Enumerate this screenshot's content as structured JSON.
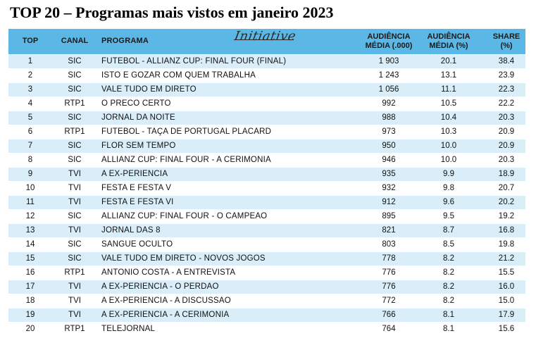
{
  "title": "TOP 20 – Programas mais vistos em janeiro 2023",
  "logo_text": "Initiative",
  "header": {
    "top": "TOP",
    "canal": "CANAL",
    "programa": "PROGRAMA",
    "audiencia_line1": "AUDIÊNCIA",
    "audiencia_line2": "MÉDIA (.000)",
    "audiencia_pct_line1": "AUDIÊNCIA",
    "audiencia_pct_line2": "MÉDIA (%)",
    "share_line1": "SHARE",
    "share_line2": "(%)"
  },
  "rows": [
    {
      "top": "1",
      "canal": "SIC",
      "programa": "FUTEBOL - ALLIANZ CUP: FINAL FOUR (FINAL)",
      "audiencia": "1 903",
      "audiencia_pct": "20.1",
      "share": "38.4"
    },
    {
      "top": "2",
      "canal": "SIC",
      "programa": "ISTO E GOZAR COM QUEM TRABALHA",
      "audiencia": "1 243",
      "audiencia_pct": "13.1",
      "share": "23.9"
    },
    {
      "top": "3",
      "canal": "SIC",
      "programa": "VALE TUDO EM DIRETO",
      "audiencia": "1 056",
      "audiencia_pct": "11.1",
      "share": "22.3"
    },
    {
      "top": "4",
      "canal": "RTP1",
      "programa": "O PRECO CERTO",
      "audiencia": "992",
      "audiencia_pct": "10.5",
      "share": "22.2"
    },
    {
      "top": "5",
      "canal": "SIC",
      "programa": "JORNAL DA NOITE",
      "audiencia": "988",
      "audiencia_pct": "10.4",
      "share": "20.3"
    },
    {
      "top": "6",
      "canal": "RTP1",
      "programa": "FUTEBOL - TAÇA DE PORTUGAL PLACARD",
      "audiencia": "973",
      "audiencia_pct": "10.3",
      "share": "20.9"
    },
    {
      "top": "7",
      "canal": "SIC",
      "programa": "FLOR SEM TEMPO",
      "audiencia": "950",
      "audiencia_pct": "10.0",
      "share": "20.9"
    },
    {
      "top": "8",
      "canal": "SIC",
      "programa": "ALLIANZ CUP: FINAL FOUR - A CERIMONIA",
      "audiencia": "946",
      "audiencia_pct": "10.0",
      "share": "20.3"
    },
    {
      "top": "9",
      "canal": "TVI",
      "programa": "A EX-PERIENCIA",
      "audiencia": "935",
      "audiencia_pct": "9.9",
      "share": "18.9"
    },
    {
      "top": "10",
      "canal": "TVI",
      "programa": "FESTA E FESTA V",
      "audiencia": "932",
      "audiencia_pct": "9.8",
      "share": "20.7"
    },
    {
      "top": "11",
      "canal": "TVI",
      "programa": "FESTA E FESTA VI",
      "audiencia": "912",
      "audiencia_pct": "9.6",
      "share": "20.2"
    },
    {
      "top": "12",
      "canal": "SIC",
      "programa": "ALLIANZ CUP: FINAL FOUR - O CAMPEAO",
      "audiencia": "895",
      "audiencia_pct": "9.5",
      "share": "19.2"
    },
    {
      "top": "13",
      "canal": "TVI",
      "programa": "JORNAL DAS 8",
      "audiencia": "821",
      "audiencia_pct": "8.7",
      "share": "16.8"
    },
    {
      "top": "14",
      "canal": "SIC",
      "programa": "SANGUE OCULTO",
      "audiencia": "803",
      "audiencia_pct": "8.5",
      "share": "19.8"
    },
    {
      "top": "15",
      "canal": "SIC",
      "programa": "VALE TUDO EM DIRETO - NOVOS JOGOS",
      "audiencia": "778",
      "audiencia_pct": "8.2",
      "share": "21.2"
    },
    {
      "top": "16",
      "canal": "RTP1",
      "programa": "ANTONIO COSTA - A ENTREVISTA",
      "audiencia": "776",
      "audiencia_pct": "8.2",
      "share": "15.5"
    },
    {
      "top": "17",
      "canal": "TVI",
      "programa": "A EX-PERIENCIA - O PERDAO",
      "audiencia": "776",
      "audiencia_pct": "8.2",
      "share": "16.0"
    },
    {
      "top": "18",
      "canal": "TVI",
      "programa": "A EX-PERIENCIA - A DISCUSSAO",
      "audiencia": "772",
      "audiencia_pct": "8.2",
      "share": "15.0"
    },
    {
      "top": "19",
      "canal": "TVI",
      "programa": "A EX-PERIENCIA - A CERIMONIA",
      "audiencia": "766",
      "audiencia_pct": "8.1",
      "share": "17.9"
    },
    {
      "top": "20",
      "canal": "RTP1",
      "programa": "TELEJORNAL",
      "audiencia": "764",
      "audiencia_pct": "8.1",
      "share": "15.6"
    }
  ]
}
